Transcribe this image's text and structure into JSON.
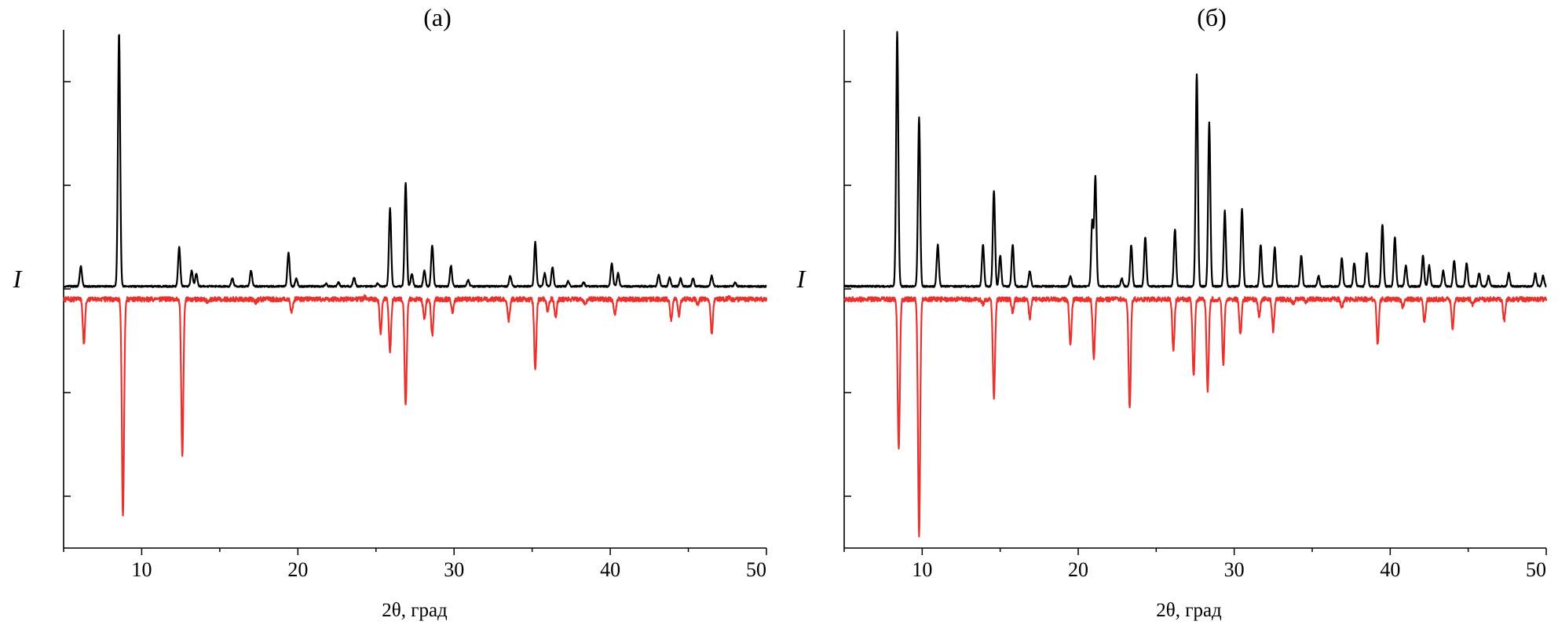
{
  "colors": {
    "top_trace": "#000000",
    "bottom_trace": "#e8322d",
    "axis": "#000000"
  },
  "chart_data": [
    {
      "type": "line",
      "title": "(а)",
      "xlabel": "2θ, град",
      "ylabel": "I",
      "xlim": [
        5,
        50
      ],
      "ylim": [
        -5,
        5
      ],
      "x_ticks": [
        10,
        20,
        30,
        40,
        50
      ],
      "x_tick_labels": [
        "10",
        "20",
        "30",
        "40",
        "50"
      ],
      "y_ticks": [
        -4,
        -2,
        0,
        2,
        4
      ],
      "y_tick_labels": [],
      "grid": false,
      "series": [
        {
          "role": "top",
          "baseline": 0.05,
          "peaks": [
            [
              6.1,
              0.45
            ],
            [
              8.55,
              4.95
            ],
            [
              12.4,
              0.8
            ],
            [
              13.2,
              0.35
            ],
            [
              13.5,
              0.3
            ],
            [
              15.8,
              0.2
            ],
            [
              17.0,
              0.35
            ],
            [
              19.4,
              0.7
            ],
            [
              19.9,
              0.2
            ],
            [
              21.8,
              0.1
            ],
            [
              22.6,
              0.12
            ],
            [
              23.6,
              0.22
            ],
            [
              25.1,
              0.1
            ],
            [
              25.9,
              1.55
            ],
            [
              26.9,
              2.05
            ],
            [
              27.3,
              0.3
            ],
            [
              28.1,
              0.35
            ],
            [
              28.6,
              0.85
            ],
            [
              29.8,
              0.45
            ],
            [
              30.9,
              0.18
            ],
            [
              33.6,
              0.25
            ],
            [
              35.2,
              0.9
            ],
            [
              35.8,
              0.3
            ],
            [
              36.3,
              0.42
            ],
            [
              37.3,
              0.15
            ],
            [
              38.3,
              0.12
            ],
            [
              40.1,
              0.5
            ],
            [
              40.5,
              0.3
            ],
            [
              43.1,
              0.28
            ],
            [
              43.8,
              0.22
            ],
            [
              44.5,
              0.2
            ],
            [
              45.3,
              0.2
            ],
            [
              46.5,
              0.25
            ],
            [
              48.0,
              0.12
            ]
          ]
        },
        {
          "role": "bottom",
          "baseline": -0.2,
          "peaks": [
            [
              6.3,
              -1.05
            ],
            [
              8.8,
              -4.4
            ],
            [
              12.6,
              -3.2
            ],
            [
              14.2,
              -0.25
            ],
            [
              16.6,
              -0.2
            ],
            [
              17.3,
              -0.25
            ],
            [
              19.6,
              -0.45
            ],
            [
              22.8,
              -0.2
            ],
            [
              24.3,
              -0.15
            ],
            [
              25.3,
              -0.85
            ],
            [
              25.9,
              -1.2
            ],
            [
              26.9,
              -2.25
            ],
            [
              28.1,
              -0.6
            ],
            [
              28.6,
              -0.9
            ],
            [
              29.9,
              -0.45
            ],
            [
              31.8,
              -0.2
            ],
            [
              33.5,
              -0.6
            ],
            [
              35.2,
              -1.55
            ],
            [
              36.0,
              -0.45
            ],
            [
              36.5,
              -0.55
            ],
            [
              38.4,
              -0.3
            ],
            [
              40.3,
              -0.5
            ],
            [
              43.9,
              -0.6
            ],
            [
              44.4,
              -0.5
            ],
            [
              45.6,
              -0.3
            ],
            [
              46.5,
              -0.85
            ],
            [
              47.6,
              -0.15
            ]
          ]
        }
      ]
    },
    {
      "type": "line",
      "title": "(б)",
      "xlabel": "2θ, град",
      "ylabel": "I",
      "xlim": [
        5,
        50
      ],
      "ylim": [
        -5,
        5
      ],
      "x_ticks": [
        10,
        20,
        30,
        40,
        50
      ],
      "x_tick_labels": [
        "10",
        "20",
        "30",
        "40",
        "50"
      ],
      "y_ticks": [
        -4,
        -2,
        0,
        2,
        4
      ],
      "y_tick_labels": [],
      "grid": false,
      "series": [
        {
          "role": "top",
          "baseline": 0.05,
          "peaks": [
            [
              8.4,
              4.95
            ],
            [
              9.8,
              3.3
            ],
            [
              11.0,
              0.85
            ],
            [
              13.9,
              0.85
            ],
            [
              14.6,
              1.9
            ],
            [
              15.0,
              0.65
            ],
            [
              15.8,
              0.85
            ],
            [
              16.9,
              0.35
            ],
            [
              19.5,
              0.25
            ],
            [
              20.9,
              1.3
            ],
            [
              21.1,
              2.15
            ],
            [
              22.8,
              0.2
            ],
            [
              23.4,
              0.85
            ],
            [
              24.3,
              1.0
            ],
            [
              26.2,
              1.15
            ],
            [
              27.6,
              4.15
            ],
            [
              28.4,
              3.2
            ],
            [
              29.4,
              1.5
            ],
            [
              30.5,
              1.55
            ],
            [
              31.7,
              0.85
            ],
            [
              32.6,
              0.8
            ],
            [
              34.3,
              0.65
            ],
            [
              35.4,
              0.25
            ],
            [
              36.9,
              0.6
            ],
            [
              37.7,
              0.5
            ],
            [
              38.5,
              0.7
            ],
            [
              39.5,
              1.25
            ],
            [
              40.3,
              1.0
            ],
            [
              41.0,
              0.45
            ],
            [
              42.1,
              0.65
            ],
            [
              42.5,
              0.45
            ],
            [
              43.4,
              0.35
            ],
            [
              44.1,
              0.55
            ],
            [
              44.9,
              0.5
            ],
            [
              45.7,
              0.3
            ],
            [
              46.3,
              0.25
            ],
            [
              47.6,
              0.3
            ],
            [
              49.3,
              0.3
            ],
            [
              49.8,
              0.25
            ]
          ]
        },
        {
          "role": "bottom",
          "baseline": -0.2,
          "peaks": [
            [
              8.5,
              -3.1
            ],
            [
              9.8,
              -4.75
            ],
            [
              11.4,
              -0.2
            ],
            [
              13.9,
              -0.3
            ],
            [
              14.6,
              -2.1
            ],
            [
              15.8,
              -0.45
            ],
            [
              16.9,
              -0.55
            ],
            [
              19.5,
              -1.1
            ],
            [
              21.0,
              -1.35
            ],
            [
              23.3,
              -2.3
            ],
            [
              26.1,
              -1.2
            ],
            [
              27.4,
              -1.7
            ],
            [
              28.3,
              -1.95
            ],
            [
              29.3,
              -1.45
            ],
            [
              30.4,
              -0.9
            ],
            [
              31.6,
              -0.55
            ],
            [
              32.5,
              -0.8
            ],
            [
              33.8,
              -0.3
            ],
            [
              34.6,
              -0.25
            ],
            [
              36.9,
              -0.35
            ],
            [
              39.2,
              -1.05
            ],
            [
              40.8,
              -0.35
            ],
            [
              42.2,
              -0.65
            ],
            [
              44.0,
              -0.75
            ],
            [
              45.3,
              -0.3
            ],
            [
              47.3,
              -0.6
            ]
          ]
        }
      ]
    }
  ]
}
